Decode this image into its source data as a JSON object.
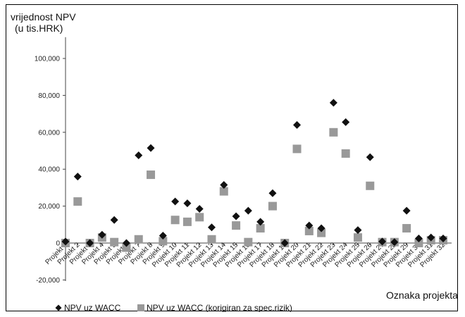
{
  "chart_data": {
    "type": "scatter",
    "ylabel_lines": [
      "vrijednost NPV",
      "(u tis.HRK)"
    ],
    "xlabel": "Oznaka projekta",
    "ylim": [
      -20000,
      110000
    ],
    "yticks": [
      -20000,
      0,
      20000,
      40000,
      60000,
      80000,
      100000
    ],
    "ytick_labels": [
      "-20,000",
      "0",
      "20,000",
      "40,000",
      "60,000",
      "80,000",
      "100,000"
    ],
    "grid": false,
    "legend_position": "bottom",
    "categories": [
      "Projekt 1",
      "Projekt 2",
      "Projekt 3",
      "Projekt 4",
      "Projekt 5",
      "Projekt 6",
      "Projekt 7",
      "Projekt 8",
      "Projekt 9",
      "Projekt 10",
      "Projekt 11",
      "Projekt 12",
      "Projekt 13",
      "Projekt 14",
      "Projekt 15",
      "Projekt 16",
      "Projekt 17",
      "Projekt 18",
      "Projekt 19",
      "Projekt 20",
      "Projekt 21",
      "Projekt 22",
      "Projekt 23",
      "Projekt 24",
      "Projekt 25",
      "Projekt 26",
      "Projekt 27",
      "Projekt 28",
      "Projekt 29",
      "Projekt 30",
      "Projekt 31",
      "Projekt 32"
    ],
    "series": [
      {
        "name": "NPV uz WACC",
        "marker": "diamond",
        "color": "#111111",
        "values": [
          800,
          36000,
          0,
          4500,
          12500,
          0,
          47500,
          51500,
          4000,
          22500,
          21500,
          18500,
          8500,
          31500,
          14500,
          17500,
          11500,
          27000,
          0,
          64000,
          9500,
          8000,
          76000,
          65500,
          7000,
          46500,
          800,
          500,
          17500,
          2500,
          3000,
          2500
        ]
      },
      {
        "name": "NPV uz WACC (korigiran za spec.rizik)",
        "marker": "square",
        "color": "#999999",
        "values": [
          0,
          22500,
          0,
          3000,
          500,
          -2500,
          2000,
          37000,
          1000,
          12500,
          11500,
          14000,
          2000,
          28000,
          9500,
          500,
          8000,
          20000,
          0,
          51000,
          6500,
          5500,
          60000,
          48500,
          3000,
          31000,
          500,
          500,
          8000,
          0,
          1500,
          1500
        ]
      }
    ]
  }
}
